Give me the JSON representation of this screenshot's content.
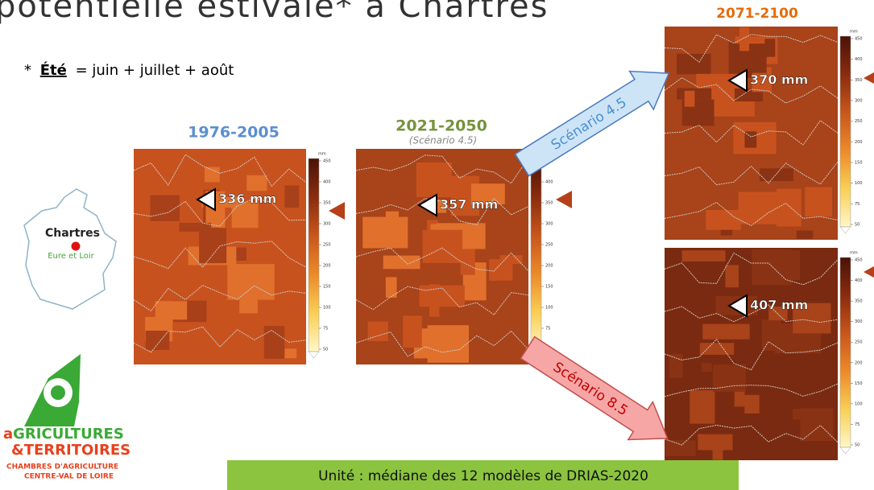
{
  "title": "potentielle estivale* à Chartres",
  "note": {
    "mark": "*",
    "term": "Été",
    "definition": "= juin + juillet + août"
  },
  "location": {
    "city": "Chartres",
    "department": "Eure et Loir"
  },
  "colorbar": {
    "unit": "mm",
    "ticks": [
      450,
      400,
      350,
      300,
      250,
      200,
      150,
      100,
      75,
      50
    ]
  },
  "panels": [
    {
      "period": "1976-2005",
      "value": "336 mm"
    },
    {
      "period": "2021-2050",
      "subtitle": "(Scénario 4.5)",
      "value": "357 mm"
    },
    {
      "period": "2071-2100",
      "value": "370 mm"
    },
    {
      "value": "407 mm"
    }
  ],
  "scenarios": [
    "Scénario 4.5",
    "Scénario 8.5"
  ],
  "footer": "Unité : médiane des 12 modèles de DRIAS-2020",
  "logo": {
    "initial": "a",
    "rest": "GRICULTURES",
    "line2": "&TERRITOIRES",
    "line3": "CHAMBRES D'AGRICULTURE",
    "line4": "CENTRE-VAL DE LOIRE"
  }
}
